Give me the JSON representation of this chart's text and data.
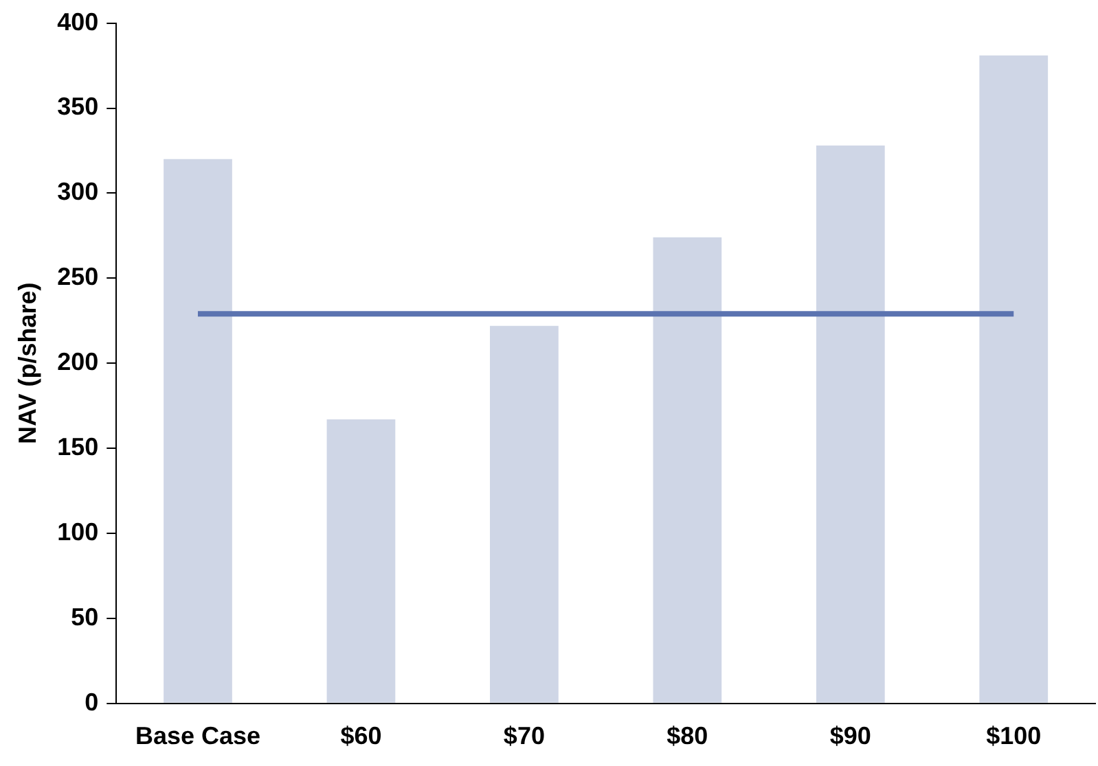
{
  "chart_data": {
    "type": "bar",
    "ylabel": "NAV (p/share)",
    "categories": [
      "Base Case",
      "$60",
      "$70",
      "$80",
      "$90",
      "$100"
    ],
    "series": [
      {
        "color": "#cfd6e6",
        "values": [
          320,
          167,
          222,
          274,
          328,
          381
        ]
      },
      {
        "type": "line",
        "color": "#5b73b0",
        "values": [
          229,
          229,
          229,
          229,
          229,
          229
        ]
      }
    ],
    "ylim": [
      0,
      400
    ],
    "yticks": [
      0,
      50,
      100,
      150,
      200,
      250,
      300,
      350,
      400
    ],
    "grid": false,
    "legend": false,
    "marker": "none"
  }
}
